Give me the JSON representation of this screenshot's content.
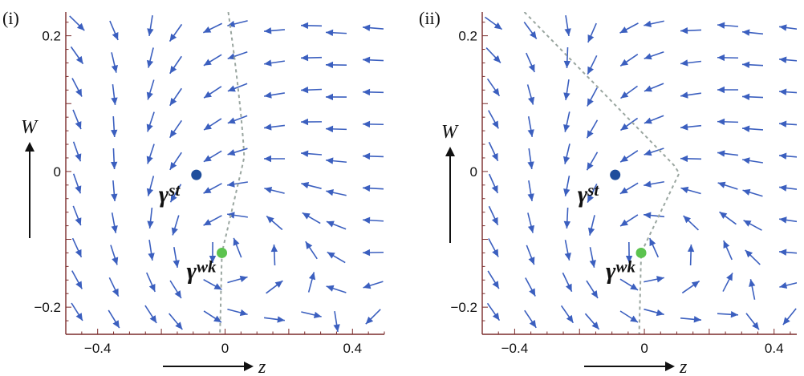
{
  "panels": [
    {
      "id": "i",
      "label": "(i)",
      "x_ticks": [
        {
          "value": -0.4,
          "label": "−0.4"
        },
        {
          "value": 0,
          "label": "0"
        },
        {
          "value": 0.4,
          "label": "0.4"
        }
      ],
      "y_ticks": [
        {
          "value": 0.2,
          "label": "0.2"
        },
        {
          "value": 0,
          "label": "0"
        },
        {
          "value": -0.2,
          "label": "−0.2"
        }
      ],
      "xlim": [
        -0.5,
        0.5
      ],
      "ylim": [
        -0.24,
        0.235
      ],
      "points": [
        {
          "id": "st",
          "base": "γ",
          "sup": "st",
          "z": -0.09,
          "w": -0.005,
          "color": "#1f4e9c"
        },
        {
          "id": "wk",
          "base": "γ",
          "sup": "wk",
          "z": -0.01,
          "w": -0.12,
          "color": "#5cc34f"
        }
      ],
      "field": {
        "center": [
          -0.01,
          -0.12
        ],
        "saddle": [
          0.06,
          0.02
        ],
        "rotation": "counterclockwise"
      }
    },
    {
      "id": "ii",
      "label": "(ii)",
      "x_ticks": [
        {
          "value": -0.4,
          "label": "−0.4"
        },
        {
          "value": 0,
          "label": "0"
        },
        {
          "value": 0.4,
          "label": "0.4"
        }
      ],
      "y_ticks": [
        {
          "value": 0.2,
          "label": "0.2"
        },
        {
          "value": 0,
          "label": "0"
        },
        {
          "value": -0.2,
          "label": "−0.2"
        }
      ],
      "xlim": [
        -0.5,
        0.47
      ],
      "ylim": [
        -0.24,
        0.235
      ],
      "points": [
        {
          "id": "st",
          "base": "γ",
          "sup": "st",
          "z": -0.09,
          "w": -0.005,
          "color": "#1f4e9c"
        },
        {
          "id": "wk",
          "base": "γ",
          "sup": "wk",
          "z": -0.01,
          "w": -0.12,
          "color": "#5cc34f"
        }
      ],
      "field": {
        "center": [
          -0.01,
          -0.12
        ],
        "saddle": [
          0.11,
          0.0
        ],
        "rotation": "counterclockwise"
      }
    }
  ],
  "axis_names": {
    "x": "z",
    "y": "W"
  },
  "colors": {
    "streamline": "#3b5fbf",
    "nullcline": "#9aa6a0",
    "frame": "#7a2a2a"
  }
}
